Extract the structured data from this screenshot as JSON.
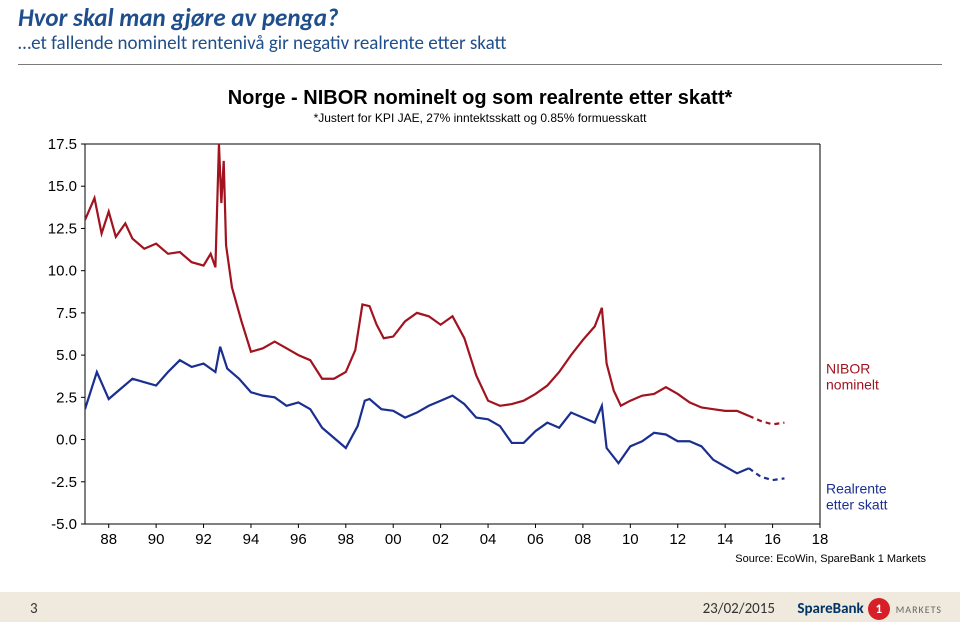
{
  "header": {
    "title": "Hvor skal man gjøre av penga?",
    "subtitle": "…et fallende nominelt rentenivå gir negativ realrente etter skatt"
  },
  "chart": {
    "type": "line",
    "title": "Norge - NIBOR nominelt og som realrente etter skatt*",
    "title_fontsize": 20,
    "title_fontweight": "bold",
    "subtitle": "*Justert for KPI JAE, 27% inntektsskatt og 0.85% formuesskatt",
    "subtitle_fontsize": 12,
    "font_family": "Arial",
    "background_color": "#ffffff",
    "plot_border_color": "#000000",
    "axis_font_color": "#000000",
    "y_axis": {
      "lim": [
        -5.0,
        17.5
      ],
      "tick_step": 2.5,
      "ticks": [
        -5.0,
        -2.5,
        0.0,
        2.5,
        5.0,
        7.5,
        10.0,
        12.5,
        15.0,
        17.5
      ],
      "label_fontsize": 15
    },
    "x_axis": {
      "year_start": 1987,
      "year_end": 2018,
      "tick_start": 1988,
      "tick_step": 2,
      "tick_labels": [
        "88",
        "90",
        "92",
        "94",
        "96",
        "98",
        "00",
        "02",
        "04",
        "06",
        "08",
        "10",
        "12",
        "14",
        "16",
        "18"
      ],
      "label_fontsize": 15
    },
    "series": [
      {
        "name": "NIBOR nominelt",
        "label": "NIBOR nominelt",
        "label_color": "#a0131f",
        "color": "#a0131f",
        "line_width": 2.2,
        "points": [
          [
            1987.0,
            13.0
          ],
          [
            1987.4,
            14.3
          ],
          [
            1987.7,
            12.2
          ],
          [
            1988.0,
            13.5
          ],
          [
            1988.3,
            12.0
          ],
          [
            1988.7,
            12.8
          ],
          [
            1989.0,
            11.9
          ],
          [
            1989.5,
            11.3
          ],
          [
            1990.0,
            11.6
          ],
          [
            1990.5,
            11.0
          ],
          [
            1991.0,
            11.1
          ],
          [
            1991.5,
            10.5
          ],
          [
            1992.0,
            10.3
          ],
          [
            1992.3,
            11.0
          ],
          [
            1992.5,
            10.2
          ],
          [
            1992.65,
            17.5
          ],
          [
            1992.75,
            14.0
          ],
          [
            1992.85,
            16.5
          ],
          [
            1992.95,
            11.5
          ],
          [
            1993.2,
            9.0
          ],
          [
            1993.6,
            7.0
          ],
          [
            1994.0,
            5.2
          ],
          [
            1994.5,
            5.4
          ],
          [
            1995.0,
            5.8
          ],
          [
            1995.5,
            5.4
          ],
          [
            1996.0,
            5.0
          ],
          [
            1996.5,
            4.7
          ],
          [
            1997.0,
            3.6
          ],
          [
            1997.5,
            3.6
          ],
          [
            1998.0,
            4.0
          ],
          [
            1998.4,
            5.3
          ],
          [
            1998.7,
            8.0
          ],
          [
            1999.0,
            7.9
          ],
          [
            1999.3,
            6.8
          ],
          [
            1999.6,
            6.0
          ],
          [
            2000.0,
            6.1
          ],
          [
            2000.5,
            7.0
          ],
          [
            2001.0,
            7.5
          ],
          [
            2001.5,
            7.3
          ],
          [
            2002.0,
            6.8
          ],
          [
            2002.5,
            7.3
          ],
          [
            2003.0,
            6.0
          ],
          [
            2003.5,
            3.8
          ],
          [
            2004.0,
            2.3
          ],
          [
            2004.5,
            2.0
          ],
          [
            2005.0,
            2.1
          ],
          [
            2005.5,
            2.3
          ],
          [
            2006.0,
            2.7
          ],
          [
            2006.5,
            3.2
          ],
          [
            2007.0,
            4.0
          ],
          [
            2007.5,
            5.0
          ],
          [
            2008.0,
            5.9
          ],
          [
            2008.5,
            6.7
          ],
          [
            2008.8,
            7.8
          ],
          [
            2009.0,
            4.5
          ],
          [
            2009.3,
            2.9
          ],
          [
            2009.6,
            2.0
          ],
          [
            2010.0,
            2.3
          ],
          [
            2010.5,
            2.6
          ],
          [
            2011.0,
            2.7
          ],
          [
            2011.5,
            3.1
          ],
          [
            2012.0,
            2.7
          ],
          [
            2012.5,
            2.2
          ],
          [
            2013.0,
            1.9
          ],
          [
            2013.5,
            1.8
          ],
          [
            2014.0,
            1.7
          ],
          [
            2014.5,
            1.7
          ],
          [
            2015.0,
            1.4
          ]
        ],
        "forecast_points": [
          [
            2015.0,
            1.4
          ],
          [
            2015.5,
            1.1
          ],
          [
            2016.0,
            0.9
          ],
          [
            2016.5,
            1.0
          ]
        ],
        "forecast_dash": "5,4"
      },
      {
        "name": "Realrente etter skatt",
        "label": "Realrente etter skatt",
        "label_color": "#1a2f8f",
        "color": "#1a2f8f",
        "line_width": 2.2,
        "points": [
          [
            1987.0,
            1.8
          ],
          [
            1987.5,
            4.0
          ],
          [
            1988.0,
            2.4
          ],
          [
            1988.5,
            3.0
          ],
          [
            1989.0,
            3.6
          ],
          [
            1989.5,
            3.4
          ],
          [
            1990.0,
            3.2
          ],
          [
            1990.5,
            4.0
          ],
          [
            1991.0,
            4.7
          ],
          [
            1991.5,
            4.3
          ],
          [
            1992.0,
            4.5
          ],
          [
            1992.5,
            4.0
          ],
          [
            1992.7,
            5.5
          ],
          [
            1993.0,
            4.2
          ],
          [
            1993.5,
            3.6
          ],
          [
            1994.0,
            2.8
          ],
          [
            1994.5,
            2.6
          ],
          [
            1995.0,
            2.5
          ],
          [
            1995.5,
            2.0
          ],
          [
            1996.0,
            2.2
          ],
          [
            1996.5,
            1.8
          ],
          [
            1997.0,
            0.7
          ],
          [
            1997.5,
            0.1
          ],
          [
            1998.0,
            -0.5
          ],
          [
            1998.5,
            0.8
          ],
          [
            1998.8,
            2.3
          ],
          [
            1999.0,
            2.4
          ],
          [
            1999.5,
            1.8
          ],
          [
            2000.0,
            1.7
          ],
          [
            2000.5,
            1.3
          ],
          [
            2001.0,
            1.6
          ],
          [
            2001.5,
            2.0
          ],
          [
            2002.0,
            2.3
          ],
          [
            2002.5,
            2.6
          ],
          [
            2003.0,
            2.1
          ],
          [
            2003.5,
            1.3
          ],
          [
            2004.0,
            1.2
          ],
          [
            2004.5,
            0.8
          ],
          [
            2005.0,
            -0.2
          ],
          [
            2005.5,
            -0.2
          ],
          [
            2006.0,
            0.5
          ],
          [
            2006.5,
            1.0
          ],
          [
            2007.0,
            0.7
          ],
          [
            2007.5,
            1.6
          ],
          [
            2008.0,
            1.3
          ],
          [
            2008.5,
            1.0
          ],
          [
            2008.8,
            2.0
          ],
          [
            2009.0,
            -0.5
          ],
          [
            2009.5,
            -1.4
          ],
          [
            2010.0,
            -0.4
          ],
          [
            2010.5,
            -0.1
          ],
          [
            2011.0,
            0.4
          ],
          [
            2011.5,
            0.3
          ],
          [
            2012.0,
            -0.1
          ],
          [
            2012.5,
            -0.1
          ],
          [
            2013.0,
            -0.4
          ],
          [
            2013.5,
            -1.2
          ],
          [
            2014.0,
            -1.6
          ],
          [
            2014.5,
            -2.0
          ],
          [
            2015.0,
            -1.7
          ]
        ],
        "forecast_points": [
          [
            2015.0,
            -1.7
          ],
          [
            2015.5,
            -2.2
          ],
          [
            2016.0,
            -2.4
          ],
          [
            2016.5,
            -2.3
          ]
        ],
        "forecast_dash": "5,4"
      }
    ],
    "source_text": "Source: EcoWin, SpareBank 1 Markets",
    "source_fontsize": 11
  },
  "footer": {
    "page_number": "3",
    "date": "23/02/2015",
    "logo_text": "SpareBank",
    "logo_sub": "MARKETS",
    "logo_badge": "1"
  }
}
